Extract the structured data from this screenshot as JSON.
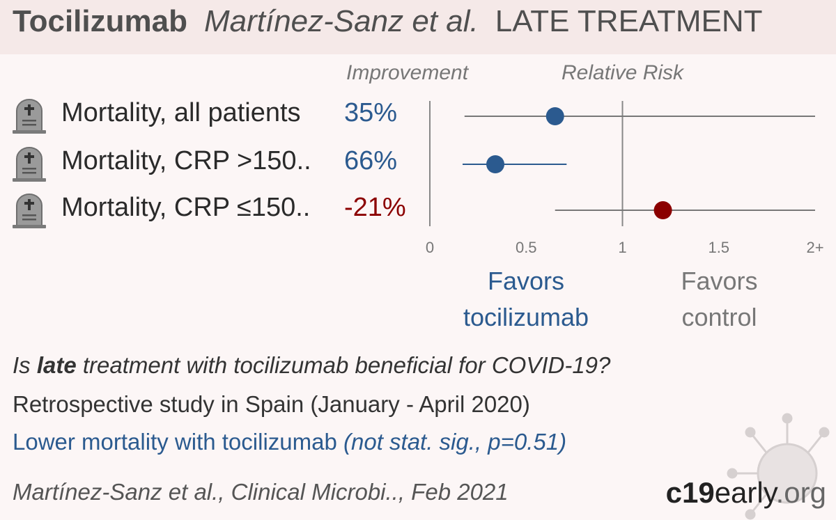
{
  "header": {
    "drug": "Tocilizumab",
    "authors": "Martínez-Sanz et al.",
    "stage": "LATE TREATMENT"
  },
  "columns": {
    "improvement": "Improvement",
    "relative_risk": "Relative Risk"
  },
  "colors": {
    "benefit": "#2b5a8f",
    "harm": "#8b0000",
    "neutral_line": "#777777"
  },
  "icons": {
    "outcome": "tombstone-icon",
    "brand": "virus-icon"
  },
  "chart_data": {
    "type": "forest",
    "xlabel": "",
    "x_ticks": [
      "0",
      "0.5",
      "1",
      "1.5",
      "2+"
    ],
    "x_range": [
      0,
      2
    ],
    "reference_line": 1,
    "rows": [
      {
        "label": "Mortality, all patients",
        "improvement": "35%",
        "rr": 0.65,
        "ci_low": 0.18,
        "ci_high": 2.0,
        "favors": "treatment"
      },
      {
        "label": "Mortality, CRP >150..",
        "improvement": "66%",
        "rr": 0.34,
        "ci_low": 0.17,
        "ci_high": 0.71,
        "favors": "treatment"
      },
      {
        "label": "Mortality, CRP ≤150..",
        "improvement": "-21%",
        "rr": 1.21,
        "ci_low": 0.65,
        "ci_high": 2.0,
        "favors": "control"
      }
    ],
    "favors_left": {
      "line1": "Favors",
      "line2": "tocilizumab"
    },
    "favors_right": {
      "line1": "Favors",
      "line2": "control"
    }
  },
  "summary": {
    "q_prefix": "Is ",
    "q_bold": "late",
    "q_suffix": " treatment with tocilizumab beneficial for COVID-19?",
    "design": "Retrospective study in Spain (January - April 2020)",
    "result_main": "Lower mortality with tocilizumab ",
    "result_detail": "(not stat. sig., p=0.51)"
  },
  "citation": "Martínez-Sanz et al., Clinical Microbi.., Feb 2021",
  "brand": {
    "part1": "c19",
    "part2": "early",
    "part3": ".org"
  }
}
